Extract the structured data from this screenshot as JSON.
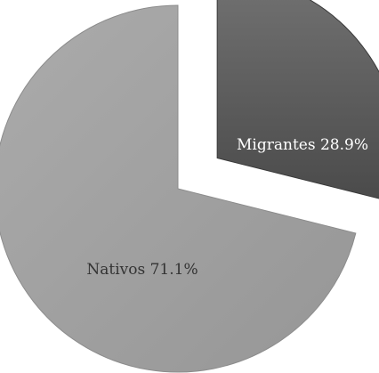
{
  "chart_data": {
    "type": "pie",
    "exploded": true,
    "slices": [
      {
        "label": "Migrantes 28.9%",
        "value": 28.9,
        "color": "#5f5f5f",
        "edge": "#3a3a3a",
        "label_color": "#ffffff"
      },
      {
        "label": "Nativos 71.1%",
        "value": 71.1,
        "color": "#a3a3a3",
        "edge": "#8a8a8a",
        "label_color": "#333333"
      }
    ]
  }
}
